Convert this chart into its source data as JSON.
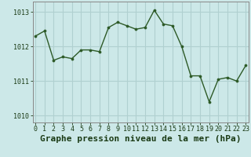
{
  "x": [
    0,
    1,
    2,
    3,
    4,
    5,
    6,
    7,
    8,
    9,
    10,
    11,
    12,
    13,
    14,
    15,
    16,
    17,
    18,
    19,
    20,
    21,
    22,
    23
  ],
  "y": [
    1012.3,
    1012.45,
    1011.6,
    1011.7,
    1011.65,
    1011.9,
    1011.9,
    1011.85,
    1012.55,
    1012.7,
    1012.6,
    1012.5,
    1012.55,
    1013.05,
    1012.65,
    1012.6,
    1012.0,
    1011.15,
    1011.15,
    1010.4,
    1011.05,
    1011.1,
    1011.0,
    1011.45
  ],
  "line_color": "#2d5a27",
  "marker_color": "#2d5a27",
  "bg_color": "#cce8e8",
  "grid_color": "#b0d0d0",
  "xlabel": "Graphe pression niveau de la mer (hPa)",
  "xlabel_color": "#1a3a14",
  "axis_color": "#888888",
  "tick_color": "#1a3a14",
  "ylim": [
    1009.8,
    1013.3
  ],
  "yticks": [
    1010,
    1011,
    1012,
    1013
  ],
  "xticks": [
    0,
    1,
    2,
    3,
    4,
    5,
    6,
    7,
    8,
    9,
    10,
    11,
    12,
    13,
    14,
    15,
    16,
    17,
    18,
    19,
    20,
    21,
    22,
    23
  ],
  "tick_fontsize": 6.0,
  "xlabel_fontsize": 8.0
}
